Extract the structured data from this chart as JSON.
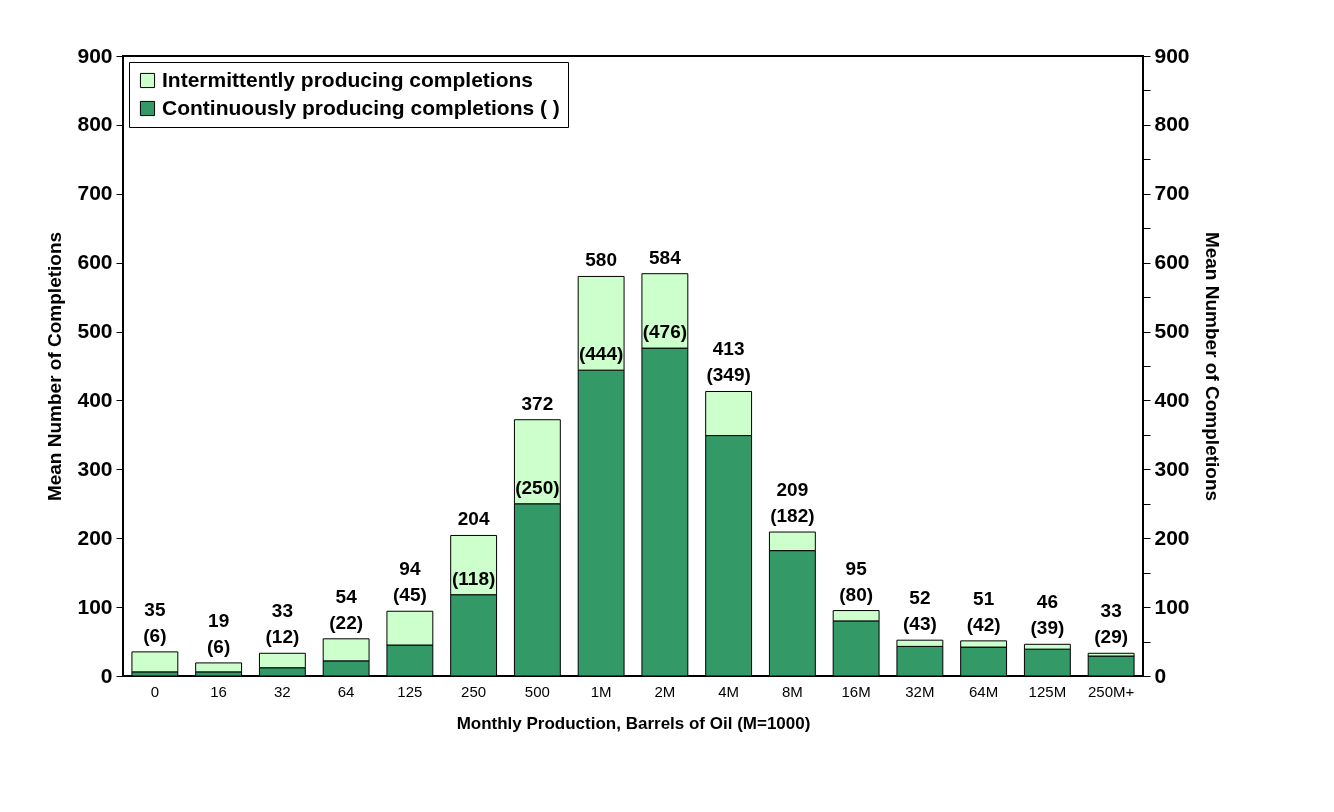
{
  "chart_data": {
    "type": "bar",
    "stacked": true,
    "xlabel": "Monthly Production, Barrels of Oil (M=1000)",
    "ylabel": "Mean Number of Completions",
    "y2label": "Mean Number of Completions",
    "categories": [
      "0",
      "16",
      "32",
      "64",
      "125",
      "250",
      "500",
      "1M",
      "2M",
      "4M",
      "8M",
      "16M",
      "32M",
      "64M",
      "125M",
      "250M+"
    ],
    "series": [
      {
        "name": "Continuously producing completions ( )",
        "color": "#339966",
        "values": [
          6,
          6,
          12,
          22,
          45,
          118,
          250,
          444,
          476,
          349,
          182,
          80,
          43,
          42,
          39,
          29
        ],
        "value_labels": [
          "(6)",
          "(6)",
          "(12)",
          "(22)",
          "(45)",
          "(118)",
          "(250)",
          "(444)",
          "(476)",
          "(349)",
          "(182)",
          "(80)",
          "(43)",
          "(42)",
          "(39)",
          "(29)"
        ]
      },
      {
        "name": "Intermittently producing completions",
        "color": "#ccffcc",
        "values": [
          29,
          13,
          21,
          32,
          49,
          86,
          122,
          136,
          108,
          64,
          27,
          15,
          9,
          9,
          7,
          4
        ]
      }
    ],
    "totals": [
      "35",
      "19",
      "33",
      "54",
      "94",
      "204",
      "372",
      "580",
      "584",
      "413",
      "209",
      "95",
      "52",
      "51",
      "46",
      "33"
    ],
    "ylim": [
      0,
      900
    ],
    "yticks": [
      0,
      {
        "value": 50,
        "label": null
      },
      100,
      {
        "value": 150,
        "label": null
      },
      200,
      {
        "value": 250,
        "label": null
      },
      300,
      {
        "value": 350,
        "label": null
      },
      400,
      {
        "value": 450,
        "label": null
      },
      500,
      {
        "value": 550,
        "label": null
      },
      600,
      {
        "value": 650,
        "label": null
      },
      700,
      {
        "value": 750,
        "label": null
      },
      800,
      {
        "value": 850,
        "label": null
      },
      900
    ],
    "y2lim": [
      0,
      900
    ],
    "y2ticks": [
      0,
      {
        "value": 50,
        "label": null
      },
      100,
      {
        "value": 150,
        "label": null
      },
      200,
      {
        "value": 250,
        "label": null
      },
      300,
      {
        "value": 350,
        "label": null
      },
      400,
      {
        "value": 450,
        "label": null
      },
      500,
      {
        "value": 550,
        "label": null
      },
      600,
      {
        "value": 650,
        "label": null
      },
      700,
      {
        "value": 750,
        "label": null
      },
      800,
      {
        "value": 850,
        "label": null
      },
      900
    ],
    "legend": "top left",
    "grid": false
  }
}
